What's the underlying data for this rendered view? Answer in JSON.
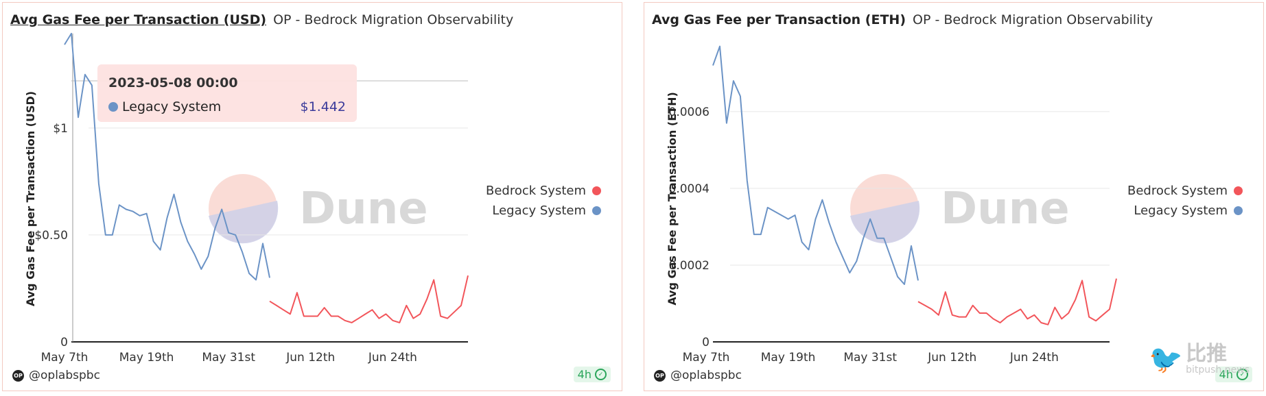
{
  "colors": {
    "bedrock": "#f2555a",
    "legacy": "#6b93c6",
    "grid": "#e6e6e6",
    "axis": "#222222"
  },
  "panels": [
    {
      "title": "Avg Gas Fee per Transaction (USD)",
      "subtitle": "OP - Bedrock Migration Observability",
      "author": "@oplabspbc",
      "badge": "4h"
    },
    {
      "title": "Avg Gas Fee per Transaction (ETH)",
      "subtitle": "OP - Bedrock Migration Observability",
      "author": "@oplabspbc",
      "badge": "4h"
    }
  ],
  "tooltip": {
    "date": "2023-05-08 00:00",
    "series": "Legacy System",
    "value": "$1.442"
  },
  "watermark": {
    "chinese": "比推",
    "domain": "bitpush.news",
    "icon": "bird-icon"
  },
  "chart_data": [
    {
      "type": "line",
      "ylabel": "Avg Gas Fee per Transaction (USD)",
      "x_ticks": [
        "May 7th",
        "May 19th",
        "May 31st",
        "Jun 12th",
        "Jun 24th"
      ],
      "y_ticks": [
        {
          "v": 0,
          "label": "0"
        },
        {
          "v": 0.5,
          "label": "$0.50"
        },
        {
          "v": 1,
          "label": "$1"
        }
      ],
      "ylim": [
        0,
        1.4
      ],
      "x_range": [
        0,
        58
      ],
      "legend": [
        "Bedrock System",
        "Legacy System"
      ],
      "legend_position": "right",
      "series": [
        {
          "name": "Legacy System",
          "color_key": "legacy",
          "x0": -1,
          "values": [
            1.39,
            1.442,
            1.05,
            1.25,
            1.2,
            0.74,
            0.5,
            0.5,
            0.64,
            0.62,
            0.61,
            0.59,
            0.6,
            0.47,
            0.43,
            0.58,
            0.69,
            0.56,
            0.47,
            0.41,
            0.34,
            0.4,
            0.53,
            0.62,
            0.51,
            0.5,
            0.42,
            0.32,
            0.29,
            0.46,
            0.3
          ]
        },
        {
          "name": "Bedrock System",
          "color_key": "bedrock",
          "x0": 29,
          "values": [
            0.19,
            0.17,
            0.15,
            0.13,
            0.23,
            0.12,
            0.12,
            0.12,
            0.16,
            0.12,
            0.12,
            0.1,
            0.09,
            0.11,
            0.13,
            0.15,
            0.11,
            0.13,
            0.1,
            0.09,
            0.17,
            0.11,
            0.13,
            0.2,
            0.29,
            0.12,
            0.11,
            0.14,
            0.17,
            0.31
          ]
        }
      ]
    },
    {
      "type": "line",
      "ylabel": "Avg Gas Fee per Transaction (ETH)",
      "x_ticks": [
        "May 7th",
        "May 19th",
        "May 31st",
        "Jun 12th",
        "Jun 24th"
      ],
      "y_ticks": [
        {
          "v": 0,
          "label": "0"
        },
        {
          "v": 0.0002,
          "label": "0.0002"
        },
        {
          "v": 0.0004,
          "label": "0.0004"
        },
        {
          "v": 0.0006,
          "label": "0.0006"
        }
      ],
      "ylim": [
        0,
        0.00078
      ],
      "x_range": [
        0,
        58
      ],
      "legend": [
        "Bedrock System",
        "Legacy System"
      ],
      "legend_position": "right",
      "series": [
        {
          "name": "Legacy System",
          "color_key": "legacy",
          "x0": 0,
          "values": [
            0.00072,
            0.00077,
            0.00057,
            0.00068,
            0.00064,
            0.00042,
            0.00028,
            0.00028,
            0.00035,
            0.00034,
            0.00033,
            0.00032,
            0.00033,
            0.00026,
            0.00024,
            0.00032,
            0.00037,
            0.00031,
            0.00026,
            0.00022,
            0.00018,
            0.00021,
            0.00027,
            0.00032,
            0.00027,
            0.00027,
            0.00022,
            0.00017,
            0.00015,
            0.00025,
            0.00016
          ]
        },
        {
          "name": "Bedrock System",
          "color_key": "bedrock",
          "x0": 30,
          "values": [
            0.000105,
            9.5e-05,
            8.5e-05,
            7e-05,
            0.00013,
            7e-05,
            6.5e-05,
            6.5e-05,
            9.5e-05,
            7.5e-05,
            7.5e-05,
            6e-05,
            5e-05,
            6.5e-05,
            7.5e-05,
            8.5e-05,
            6e-05,
            7e-05,
            5e-05,
            4.5e-05,
            9e-05,
            6e-05,
            7.5e-05,
            0.00011,
            0.00016,
            6.5e-05,
            5.5e-05,
            7e-05,
            8.5e-05,
            0.000165
          ]
        }
      ]
    }
  ]
}
